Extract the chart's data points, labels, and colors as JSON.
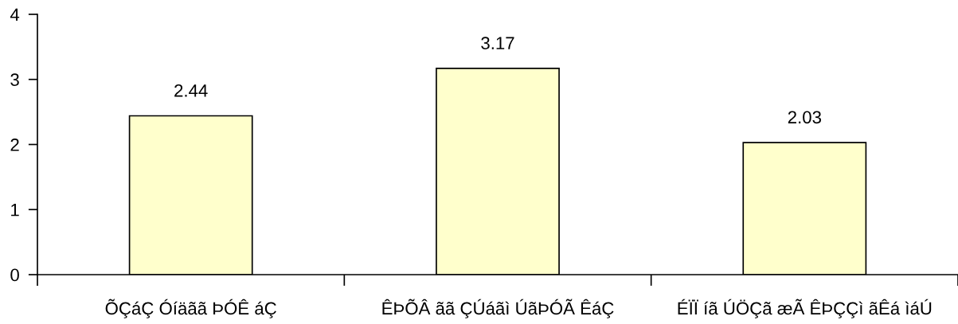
{
  "chart_data": {
    "type": "bar",
    "categories": [
      "ÕÇáÇ Óíäãã ÞÓÊ áÇ",
      "ÊÞÕÂ ãã ÇÚáãì ÚãÞÓÃ ÊáÇ",
      "ÉÏÏ íã ÚÖÇã æÃ ÊÞÇÇì ãÊá ìáÚ"
    ],
    "values": [
      2.44,
      3.17,
      2.03
    ],
    "color": "#ffffcc",
    "ylim": [
      0,
      4
    ],
    "yticks": [
      0,
      1,
      2,
      3,
      4
    ],
    "grid": false,
    "legend": false,
    "data_labels": true
  }
}
